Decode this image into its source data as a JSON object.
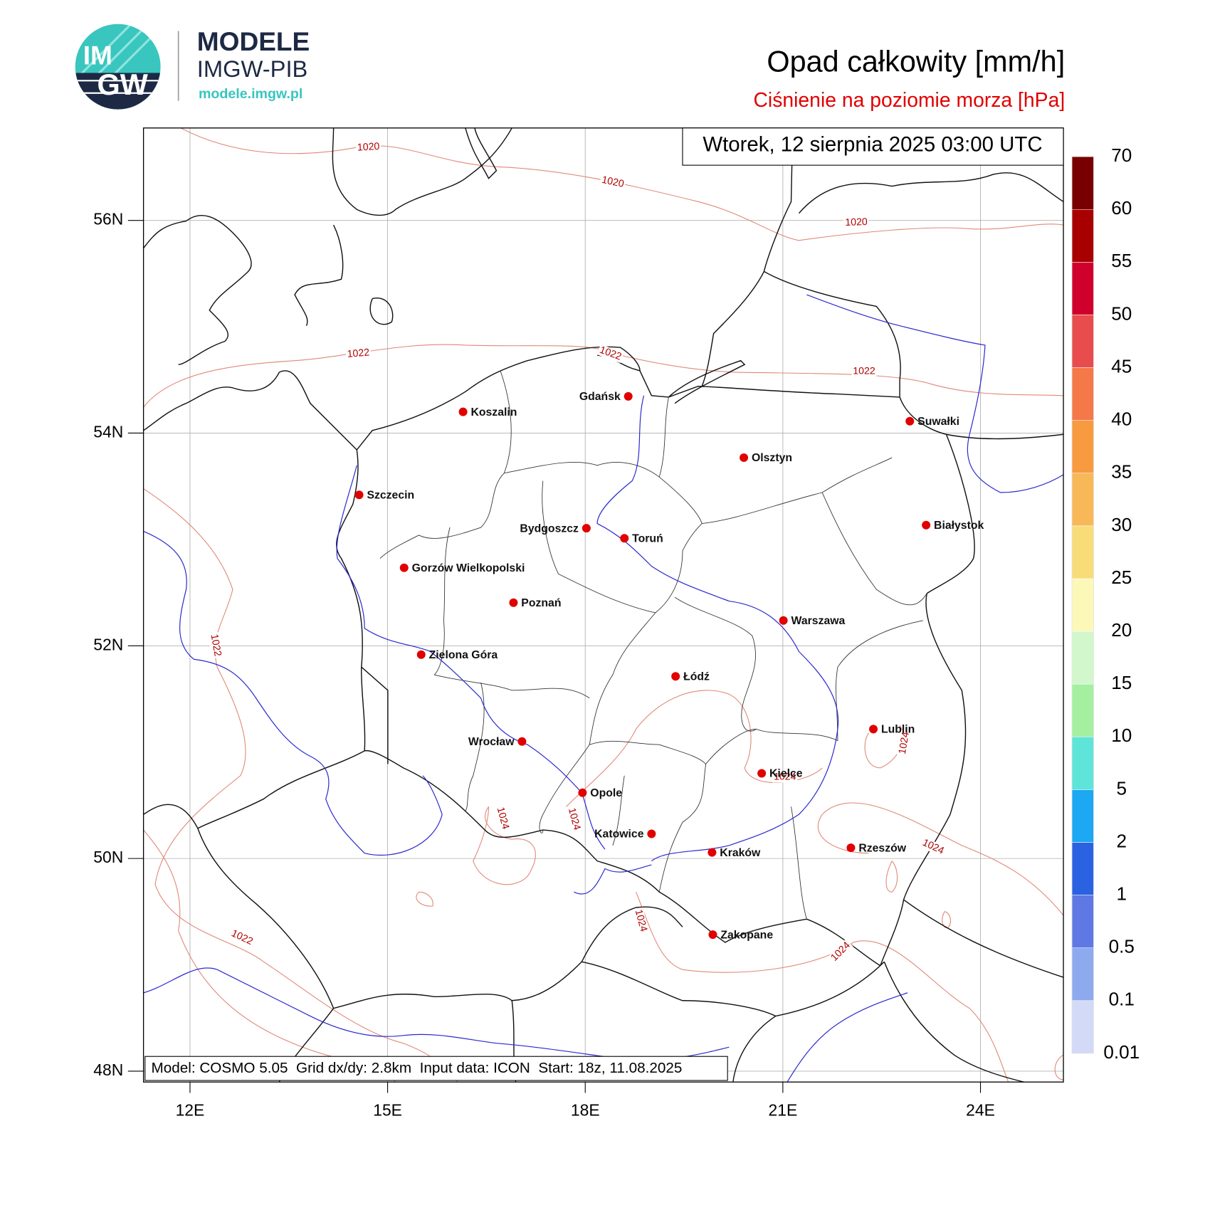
{
  "header": {
    "logo_top": "IM",
    "logo_bottom": "GW",
    "brand": "MODELE",
    "org": "IMGW-PIB",
    "url": "modele.imgw.pl"
  },
  "chart_data": {
    "type": "map",
    "title": "Opad całkowity [mm/h]",
    "subtitle": "Ciśnienie na poziomie morza [hPa]",
    "valid_time": "Wtorek, 12 sierpnia 2025 03:00 UTC",
    "footer": "Model: COSMO 5.05  Grid dx/dy: 2.8km  Input data: ICON  Start: 18z, 11.08.2025",
    "xlim": [
      11.294,
      25.259
    ],
    "ylim": [
      47.898,
      56.869
    ],
    "xticks": [
      {
        "value": 12,
        "label": "12E"
      },
      {
        "value": 15,
        "label": "15E"
      },
      {
        "value": 18,
        "label": "18E"
      },
      {
        "value": 21,
        "label": "21E"
      },
      {
        "value": 24,
        "label": "24E"
      }
    ],
    "yticks": [
      {
        "value": 48,
        "label": "48N"
      },
      {
        "value": 50,
        "label": "50N"
      },
      {
        "value": 52,
        "label": "52N"
      },
      {
        "value": 54,
        "label": "54N"
      },
      {
        "value": 56,
        "label": "56N"
      }
    ],
    "grid": true,
    "cities": [
      "Koszalin",
      "Gdańsk",
      "Suwałki",
      "Olsztyn",
      "Szczecin",
      "Białystok",
      "Bydgoszcz",
      "Toruń",
      "Gorzów Wielkopolski",
      "Poznań",
      "Warszawa",
      "Zielona Góra",
      "Łódź",
      "Lublin",
      "Wrocław",
      "Kielce",
      "Opole",
      "Katowice",
      "Kraków",
      "Rzeszów",
      "Zakopane"
    ],
    "city_color": "#e00000",
    "isobar_color": "#e08878",
    "isobar_label_color": "#b00000",
    "isobar_labels": [
      1020,
      1020,
      1020,
      1022,
      1022,
      1022,
      1022,
      1022,
      1024,
      1024,
      1024,
      1024,
      1024,
      1024,
      1024
    ],
    "colorbar": {
      "levels": [
        0.01,
        0.1,
        0.5,
        1,
        2,
        5,
        10,
        15,
        20,
        25,
        30,
        35,
        40,
        45,
        50,
        55,
        60,
        70
      ],
      "colors": [
        "#d2daf8",
        "#8eaaee",
        "#6078e4",
        "#2a62e2",
        "#1ca8f2",
        "#5ee4d8",
        "#a4f0a0",
        "#d2f7cc",
        "#fcf8b8",
        "#f8dc78",
        "#f8b858",
        "#f89a40",
        "#f47848",
        "#e84c4c",
        "#d0002c",
        "#a80000",
        "#780000"
      ]
    }
  }
}
